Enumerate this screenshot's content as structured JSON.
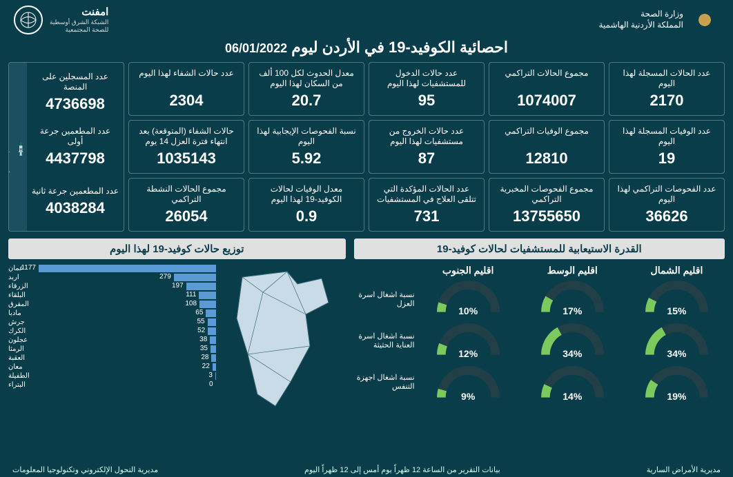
{
  "header": {
    "ministry_line1": "وزارة الصحة",
    "ministry_line2": "المملكة الأردنية الهاشمية",
    "emphnet_ar": "امفنت",
    "emphnet_sub": "الشبكة الشرق أوسطية\nللصحة المجتمعية"
  },
  "title_main": "احصائية الكوفيد-19 في الأردن ليوم",
  "title_date": "06/01/2022",
  "cards": [
    {
      "label": "عدد الحالات المسجلة لهذا اليوم",
      "value": "2170"
    },
    {
      "label": "مجموع الحالات التراكمي",
      "value": "1074007"
    },
    {
      "label": "عدد حالات الدخول للمستشفيات لهذا اليوم",
      "value": "95"
    },
    {
      "label": "معدل الحدوث لكل 100 ألف من السكان لهذا اليوم",
      "value": "20.7"
    },
    {
      "label": "عدد حالات الشفاء لهذا اليوم",
      "value": "2304"
    },
    {
      "label": "عدد الوفيات المسجلة لهذا اليوم",
      "value": "19"
    },
    {
      "label": "مجموع الوفيات التراكمي",
      "value": "12810"
    },
    {
      "label": "عدد حالات الخروج من مستشفيات لهذا اليوم",
      "value": "87"
    },
    {
      "label": "نسبة الفحوصات الإيجابية لهذا اليوم",
      "value": "5.92"
    },
    {
      "label": "حالات الشفاء (المتوقعة) بعد انتهاء فترة العزل 14 يوم",
      "value": "1035143"
    },
    {
      "label": "عدد الفحوصات التراكمي لهذا اليوم",
      "value": "36626"
    },
    {
      "label": "مجموع الفحوصات المخبرية التراكمي",
      "value": "13755650"
    },
    {
      "label": "عدد الحالات المؤكدة التي تتلقى العلاج في المستشفيات",
      "value": "731"
    },
    {
      "label": "معدل الوفيات لحالات الكوفيد-19 لهذا اليوم",
      "value": "0.9"
    },
    {
      "label": "مجموع الحالات النشطة التراكمي",
      "value": "26054"
    }
  ],
  "vax": {
    "sidebar": "مطعوم كوفيد-19",
    "items": [
      {
        "label": "عدد المسجلين على المنصة",
        "value": "4736698"
      },
      {
        "label": "عدد المطعمين جرعة أولى",
        "value": "4437798"
      },
      {
        "label": "عدد المطعمين جرعة ثانية",
        "value": "4038284"
      }
    ]
  },
  "capacity": {
    "header": "القدرة الاستيعابية للمستشفيات لحالات كوفيد-19",
    "regions": [
      "اقليم الشمال",
      "اقليم الوسط",
      "اقليم الجنوب"
    ],
    "rows": [
      {
        "label": "نسبة اشغال اسرة العزل",
        "values": [
          15,
          17,
          10
        ]
      },
      {
        "label": "نسبة اشغال اسرة العناية الحثيثة",
        "values": [
          34,
          34,
          12
        ]
      },
      {
        "label": "نسبة اشغال اجهزة التنفس",
        "values": [
          19,
          14,
          9
        ]
      }
    ],
    "track": "#223f48",
    "fill": "#7cc95e"
  },
  "dist": {
    "header": "توزيع حالات كوفيد-19 لهذا اليوم",
    "bar_color": "#5b9bd5",
    "max": 1177,
    "items": [
      {
        "name": "عمان",
        "value": 1177
      },
      {
        "name": "اربد",
        "value": 279
      },
      {
        "name": "الزرقاء",
        "value": 197
      },
      {
        "name": "البلقاء",
        "value": 111
      },
      {
        "name": "المفرق",
        "value": 108
      },
      {
        "name": "مادبا",
        "value": 65
      },
      {
        "name": "جرش",
        "value": 55
      },
      {
        "name": "الكرك",
        "value": 52
      },
      {
        "name": "عجلون",
        "value": 38
      },
      {
        "name": "الرمثا",
        "value": 35
      },
      {
        "name": "العقبة",
        "value": 28
      },
      {
        "name": "معان",
        "value": 22
      },
      {
        "name": "الطفيلة",
        "value": 3
      },
      {
        "name": "البتراء",
        "value": 0
      }
    ]
  },
  "footer": {
    "right": "مديرية الأمراض السارية",
    "center": "بيانات التقرير من الساعة 12 ظهراً يوم أمس إلى 12 ظهراً اليوم",
    "left": "مديرية التحول الإلكتروني وتكنولوجيا المعلومات"
  }
}
